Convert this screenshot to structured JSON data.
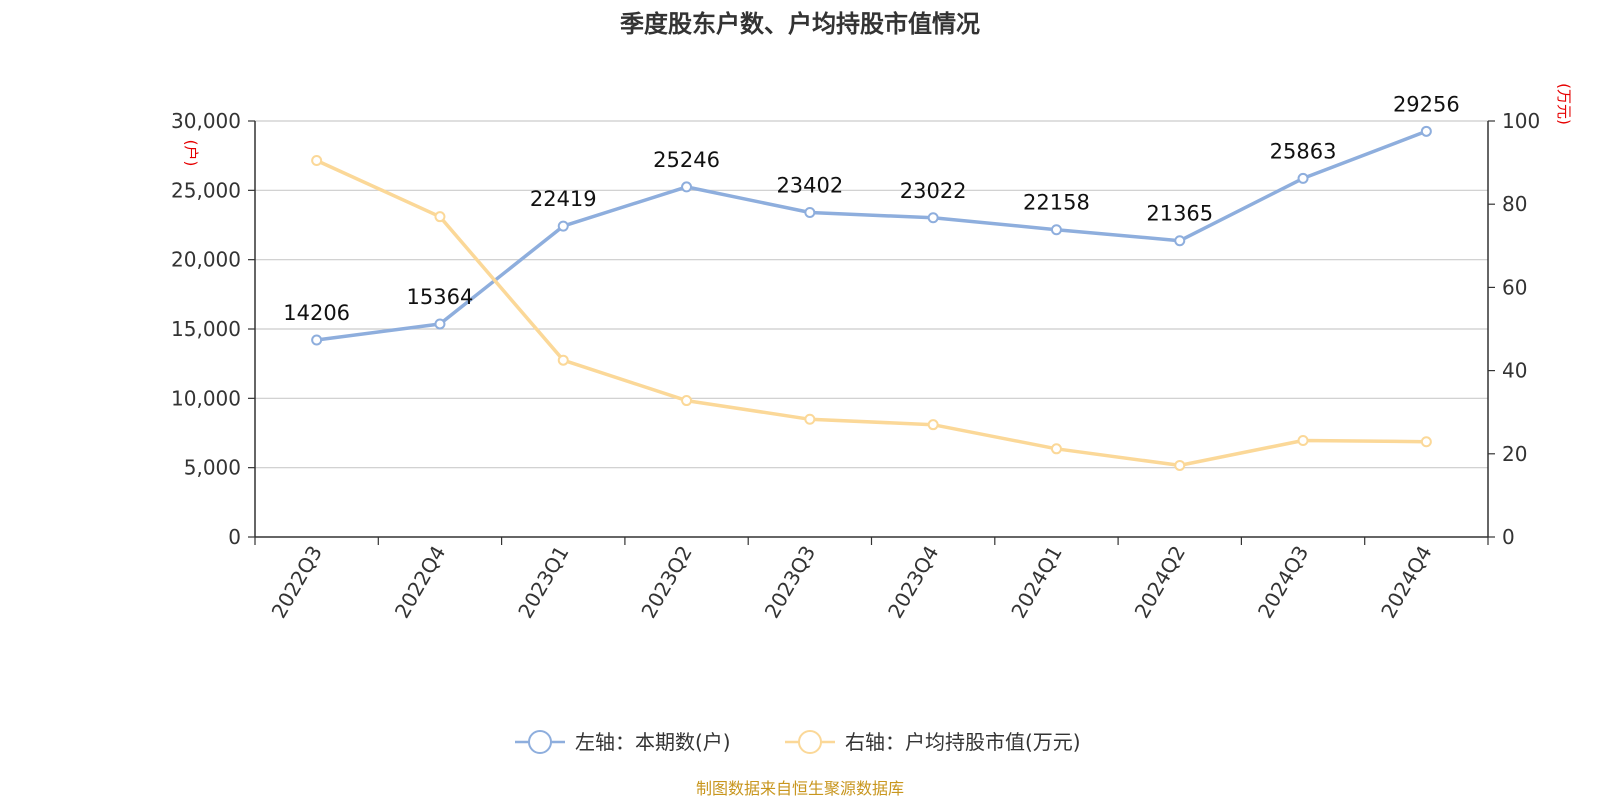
{
  "chart_data": {
    "type": "line",
    "title": "季度股东户数、户均持股市值情况",
    "categories": [
      "2022Q3",
      "2022Q4",
      "2023Q1",
      "2023Q2",
      "2023Q3",
      "2023Q4",
      "2024Q1",
      "2024Q2",
      "2024Q3",
      "2024Q4"
    ],
    "series": [
      {
        "name": "左轴：本期数(户)",
        "axis": "left",
        "color": "#8eaedd",
        "values": [
          14206,
          15364,
          22419,
          25246,
          23402,
          23022,
          22158,
          21365,
          25863,
          29256
        ],
        "show_data_labels": true
      },
      {
        "name": "右轴：户均持股市值(万元)",
        "axis": "right",
        "color": "#fbd898",
        "values": [
          90.5,
          77.0,
          42.5,
          32.8,
          28.3,
          27.0,
          21.2,
          17.2,
          23.2,
          22.9
        ],
        "show_data_labels": false
      }
    ],
    "y_left": {
      "unit_label": "(户)",
      "ylim": [
        0,
        30000
      ],
      "ticks": [
        0,
        5000,
        10000,
        15000,
        20000,
        25000,
        30000
      ],
      "tick_labels": [
        "0",
        "5,000",
        "10,000",
        "15,000",
        "20,000",
        "25,000",
        "30,000"
      ]
    },
    "y_right": {
      "unit_label": "(万元)",
      "ylim": [
        0,
        100
      ],
      "ticks": [
        0,
        20,
        40,
        60,
        80,
        100
      ],
      "tick_labels": [
        "0",
        "20",
        "40",
        "60",
        "80",
        "100"
      ]
    },
    "grid": true,
    "legend_position": "bottom-center",
    "source": "制图数据来自恒生聚源数据库",
    "source_color": "#c8961e"
  }
}
